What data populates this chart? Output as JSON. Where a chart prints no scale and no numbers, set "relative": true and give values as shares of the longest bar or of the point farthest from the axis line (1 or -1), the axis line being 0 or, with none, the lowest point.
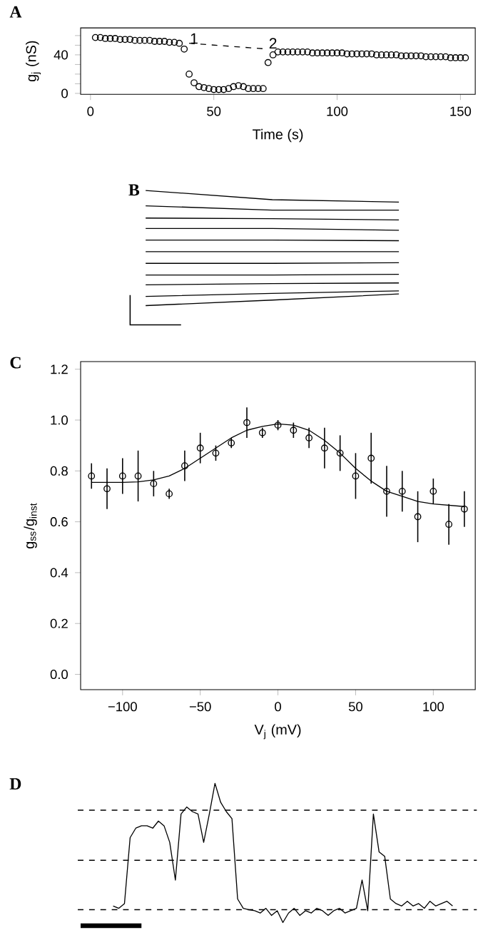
{
  "chart_data": [
    {
      "type": "scatter",
      "title": "A",
      "xlabel": "Time (s)",
      "ylabel": "g$_{j}$ (nS)",
      "xlim": [
        -4,
        156
      ],
      "ylim": [
        -1,
        68
      ],
      "xticks": [
        0,
        50,
        100,
        150
      ],
      "yticks": [
        0,
        {
          "value": 10,
          "label": null
        },
        {
          "value": 20,
          "label": null
        },
        {
          "value": 30,
          "label": null
        },
        40,
        {
          "value": 50,
          "label": null
        },
        {
          "value": 60,
          "label": null
        }
      ],
      "annotations": [
        {
          "text": "1",
          "x": 42,
          "y": 57
        },
        {
          "text": "2",
          "x": 74,
          "y": 52
        }
      ],
      "series": [
        {
          "type": "scatter",
          "marker": "circle",
          "color": "#000000",
          "x": [
            2,
            4,
            6,
            8,
            10,
            12,
            14,
            16,
            18,
            20,
            22,
            24,
            26,
            28,
            30,
            32,
            34,
            36,
            38,
            40,
            42,
            44,
            46,
            48,
            50,
            52,
            54,
            56,
            58,
            60,
            62,
            64,
            66,
            68,
            70,
            72,
            74,
            76,
            78,
            80,
            82,
            84,
            86,
            88,
            90,
            92,
            94,
            96,
            98,
            100,
            102,
            104,
            106,
            108,
            110,
            112,
            114,
            116,
            118,
            120,
            122,
            124,
            126,
            128,
            130,
            132,
            134,
            136,
            138,
            140,
            142,
            144,
            146,
            148,
            150,
            152
          ],
          "values": [
            58,
            58,
            57,
            57,
            57,
            56,
            56,
            56,
            55,
            55,
            55,
            55,
            54,
            54,
            54,
            53,
            53,
            52,
            46,
            20,
            11,
            7,
            6,
            5,
            4,
            4,
            4,
            5,
            7,
            8,
            7,
            5,
            5,
            5,
            5,
            32,
            40,
            43,
            43,
            43,
            43,
            43,
            43,
            43,
            42,
            42,
            42,
            42,
            42,
            42,
            42,
            41,
            41,
            41,
            41,
            41,
            41,
            40,
            40,
            40,
            40,
            40,
            39,
            39,
            39,
            39,
            39,
            38,
            38,
            38,
            38,
            38,
            37,
            37,
            37,
            37
          ]
        },
        {
          "type": "line",
          "marker": "none",
          "line_style": "dashed",
          "color": "#000000",
          "x": [
            40,
            72
          ],
          "values": [
            52,
            46
          ]
        }
      ]
    },
    {
      "type": "line",
      "title": "B",
      "relative": true,
      "categories": [
        null,
        null,
        null
      ],
      "series": [
        {
          "color": "#000000",
          "values": [
            1.0,
            0.85,
            0.81
          ]
        },
        {
          "color": "#000000",
          "values": [
            0.75,
            0.68,
            0.68
          ]
        },
        {
          "color": "#000000",
          "values": [
            0.55,
            0.54,
            0.52
          ]
        },
        {
          "color": "#000000",
          "values": [
            0.38,
            0.38,
            0.35
          ]
        },
        {
          "color": "#000000",
          "values": [
            0.19,
            0.19,
            0.18
          ]
        },
        {
          "color": "#000000",
          "values": [
            0,
            0,
            0
          ]
        },
        {
          "color": "#000000",
          "values": [
            -0.19,
            -0.19,
            -0.18
          ]
        },
        {
          "color": "#000000",
          "values": [
            -0.38,
            -0.38,
            -0.37
          ]
        },
        {
          "color": "#000000",
          "values": [
            -0.54,
            -0.52,
            -0.51
          ]
        },
        {
          "color": "#000000",
          "values": [
            -0.73,
            -0.68,
            -0.64
          ]
        },
        {
          "color": "#000000",
          "values": [
            -0.88,
            -0.79,
            -0.69
          ]
        }
      ]
    },
    {
      "type": "scatter",
      "title": "C",
      "xlabel": "V$_{j}$ (mV)",
      "ylabel": "g$_{ss}$/g$_{inst}$",
      "xlim": [
        -127,
        127
      ],
      "ylim": [
        -0.06,
        1.23
      ],
      "xticks": [
        {
          "value": -100,
          "label": "−100"
        },
        {
          "value": -50,
          "label": "−50"
        },
        0,
        50,
        100
      ],
      "yticks": [
        {
          "value": 0,
          "label": "0.0"
        },
        0.2,
        0.4,
        0.6,
        0.8,
        {
          "value": 1,
          "label": "1.0"
        },
        1.2
      ],
      "series": [
        {
          "type": "scatter",
          "marker": "circle",
          "color": "#000000",
          "x": [
            -120,
            -110,
            -100,
            -90,
            -80,
            -70,
            -60,
            -50,
            -40,
            -30,
            -20,
            -10,
            0,
            10,
            20,
            30,
            40,
            50,
            60,
            70,
            80,
            90,
            100,
            110,
            120
          ],
          "values": [
            0.78,
            0.73,
            0.78,
            0.78,
            0.75,
            0.71,
            0.82,
            0.89,
            0.87,
            0.91,
            0.99,
            0.95,
            0.98,
            0.96,
            0.93,
            0.89,
            0.87,
            0.78,
            0.85,
            0.72,
            0.72,
            0.62,
            0.72,
            0.59,
            0.65
          ],
          "errors": [
            0.05,
            0.08,
            0.07,
            0.1,
            0.05,
            0.02,
            0.06,
            0.06,
            0.03,
            0.02,
            0.06,
            0.02,
            0.02,
            0.03,
            0.04,
            0.08,
            0.07,
            0.09,
            0.1,
            0.1,
            0.08,
            0.1,
            0.05,
            0.08,
            0.07
          ]
        },
        {
          "type": "line",
          "marker": "none",
          "color": "#000000",
          "x": [
            -120,
            -110,
            -100,
            -90,
            -80,
            -70,
            -60,
            -50,
            -40,
            -30,
            -20,
            -10,
            0,
            10,
            20,
            30,
            40,
            50,
            60,
            70,
            80,
            90,
            100,
            110,
            120
          ],
          "values": [
            0.755,
            0.755,
            0.755,
            0.757,
            0.765,
            0.78,
            0.81,
            0.85,
            0.89,
            0.93,
            0.96,
            0.975,
            0.985,
            0.98,
            0.96,
            0.92,
            0.87,
            0.81,
            0.76,
            0.72,
            0.7,
            0.68,
            0.67,
            0.665,
            0.66
          ]
        }
      ]
    },
    {
      "type": "line",
      "title": "D",
      "relative": true,
      "categories": [
        null,
        null,
        null,
        null,
        null,
        null,
        null,
        null,
        null,
        null,
        null,
        null,
        null,
        null,
        null,
        null,
        null,
        null,
        null,
        null,
        null,
        null,
        null,
        null,
        null,
        null,
        null,
        null,
        null,
        null,
        null,
        null,
        null,
        null,
        null,
        null,
        null,
        null,
        null,
        null,
        null,
        null,
        null,
        null,
        null,
        null,
        null,
        null,
        null,
        null,
        null,
        null,
        null,
        null,
        null,
        null,
        null,
        null,
        null,
        null,
        null
      ],
      "ref_lines": [
        {
          "axis": "y",
          "value": 0.092,
          "line_style": "dashed"
        },
        {
          "axis": "y",
          "value": 0.447,
          "line_style": "dashed"
        },
        {
          "axis": "y",
          "value": 0.807,
          "line_style": "dashed"
        }
      ],
      "series": [
        {
          "color": "#000000",
          "values": [
            0.119,
            0.102,
            0.136,
            0.61,
            0.678,
            0.695,
            0.695,
            0.678,
            0.729,
            0.695,
            0.576,
            0.305,
            0.78,
            0.83,
            0.797,
            0.78,
            0.576,
            0.78,
            1.0,
            0.864,
            0.797,
            0.746,
            0.169,
            0.102,
            0.092,
            0.085,
            0.068,
            0.102,
            0.051,
            0.085,
            0.0,
            0.068,
            0.102,
            0.051,
            0.085,
            0.068,
            0.102,
            0.085,
            0.051,
            0.085,
            0.102,
            0.068,
            0.085,
            0.102,
            0.305,
            0.085,
            0.78,
            0.508,
            0.475,
            0.169,
            0.136,
            0.119,
            0.153,
            0.119,
            0.136,
            0.102,
            0.153,
            0.119,
            0.136,
            0.153,
            0.119
          ]
        }
      ]
    }
  ]
}
